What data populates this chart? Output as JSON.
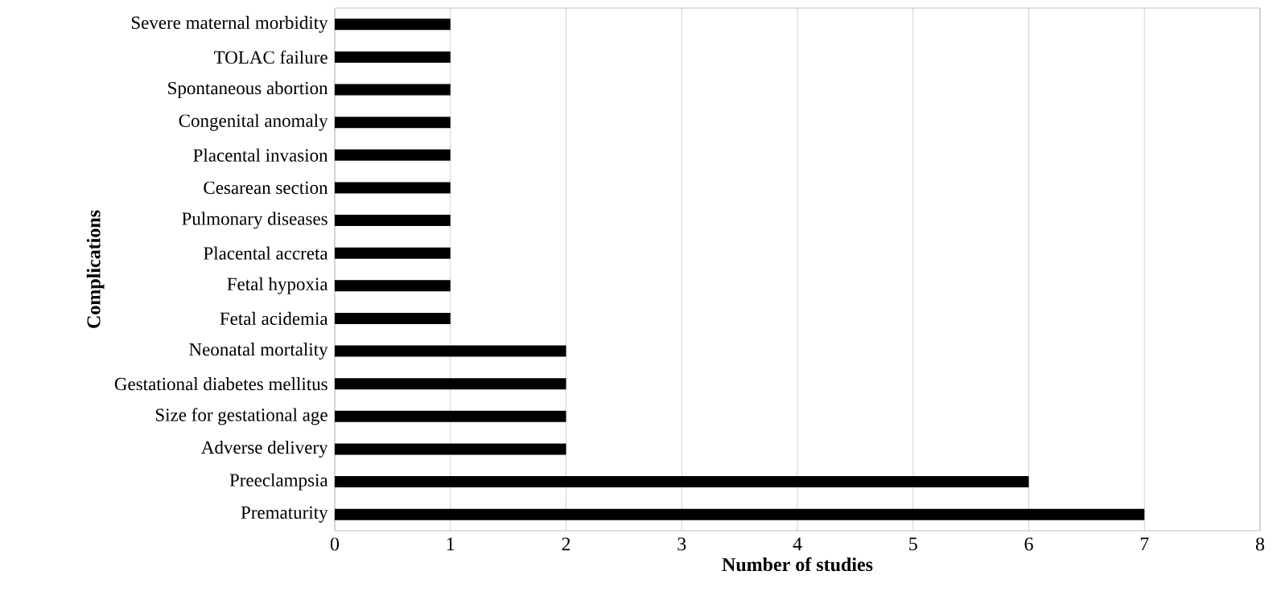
{
  "chart_data": {
    "type": "bar",
    "orientation": "horizontal",
    "xlabel": "Number of studies",
    "ylabel": "Complications",
    "categories": [
      "Severe maternal morbidity",
      "TOLAC failure",
      "Spontaneous abortion",
      "Congenital anomaly",
      "Placental invasion",
      "Cesarean section",
      "Pulmonary diseases",
      "Placental accreta",
      "Fetal hypoxia",
      "Fetal acidemia",
      "Neonatal mortality",
      "Gestational diabetes mellitus",
      "Size for gestational age",
      "Adverse delivery",
      "Preeclampsia",
      "Prematurity"
    ],
    "values": [
      1,
      1,
      1,
      1,
      1,
      1,
      1,
      1,
      1,
      1,
      2,
      2,
      2,
      2,
      6,
      7
    ],
    "color": "#000000",
    "xlim": [
      0,
      8
    ],
    "xticks": [
      0,
      1,
      2,
      3,
      4,
      5,
      6,
      7,
      8
    ],
    "grid": "x"
  }
}
